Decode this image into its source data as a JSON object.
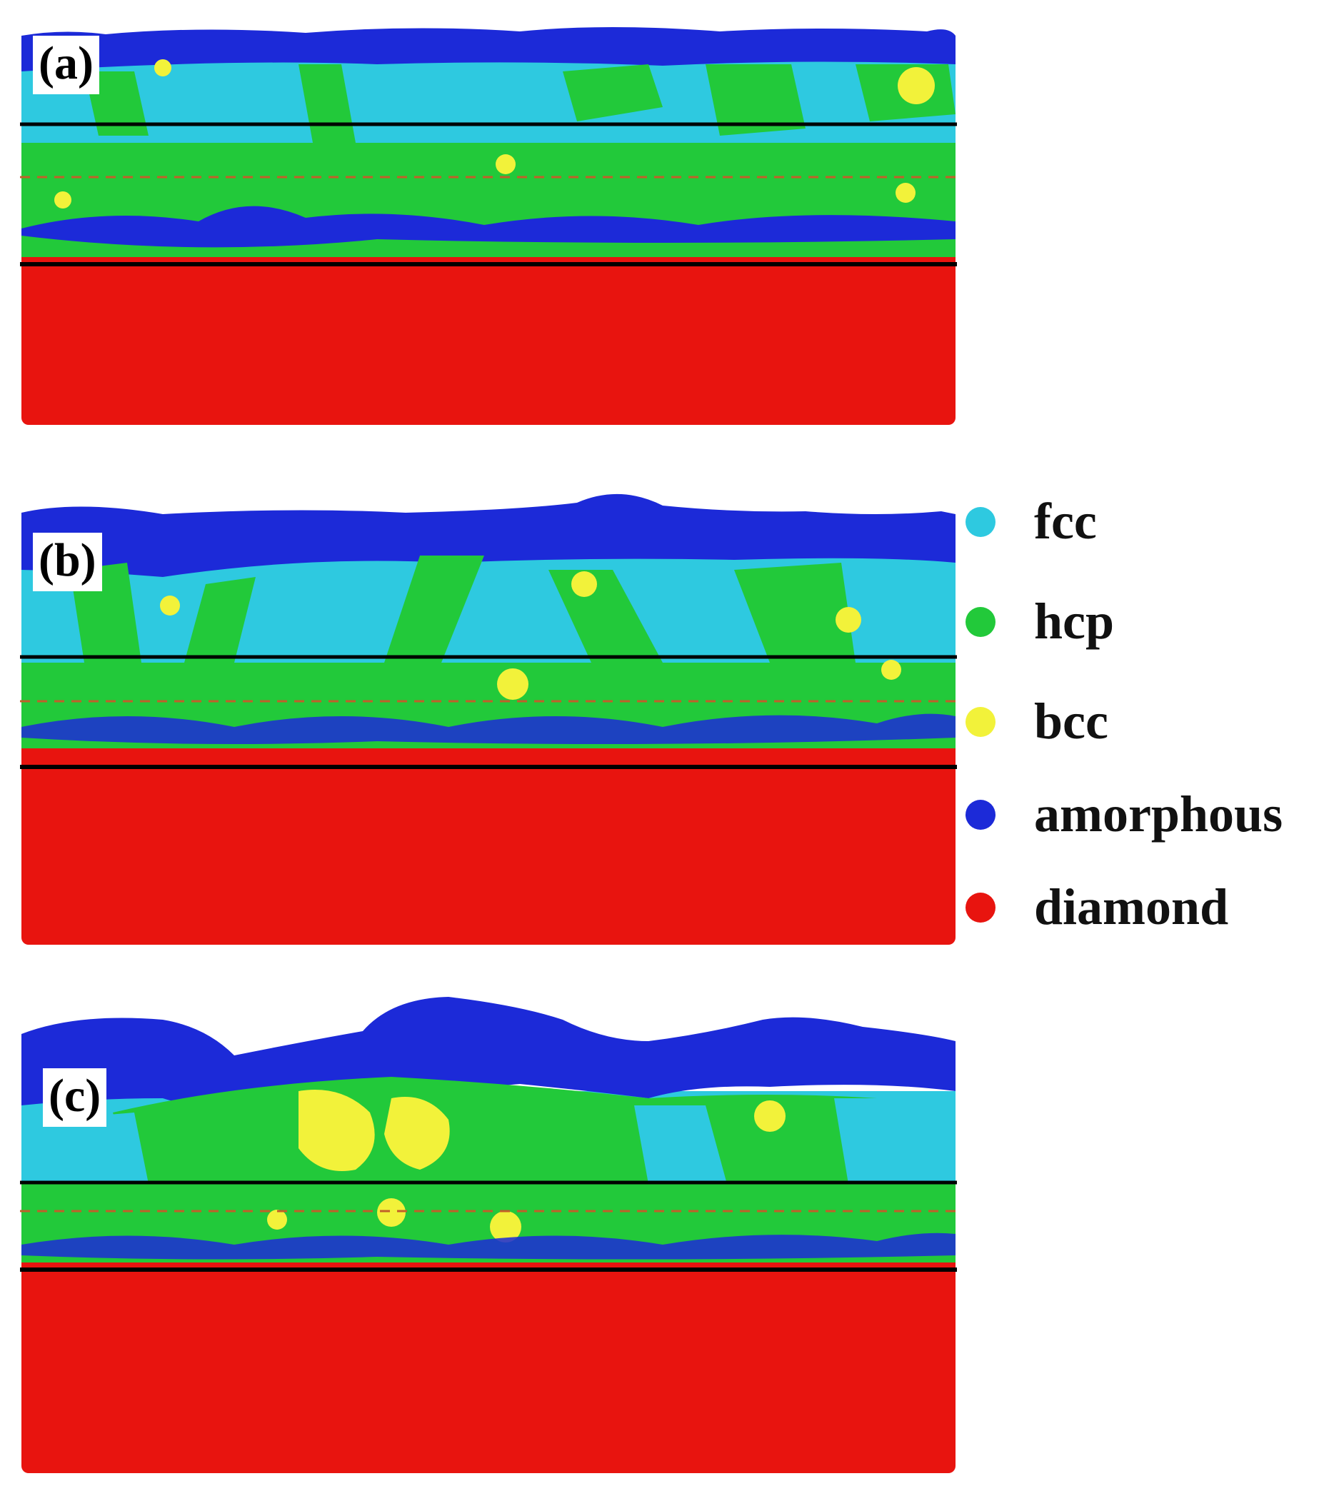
{
  "panels": [
    {
      "id": "a",
      "label": "(a)"
    },
    {
      "id": "b",
      "label": "(b)"
    },
    {
      "id": "c",
      "label": "(c)"
    }
  ],
  "legend": [
    {
      "key": "fcc",
      "label": "fcc",
      "color": "#2ec9e0"
    },
    {
      "key": "hcp",
      "label": "hcp",
      "color": "#22c93a"
    },
    {
      "key": "bcc",
      "label": "bcc",
      "color": "#f2f23a"
    },
    {
      "key": "amorphous",
      "label": "amorphous",
      "color": "#1c2ad8"
    },
    {
      "key": "diamond",
      "label": "diamond",
      "color": "#e8140f"
    }
  ],
  "colors": {
    "fcc": "#2ec9e0",
    "hcp": "#22c93a",
    "bcc": "#f2f23a",
    "amorphous": "#1c2ad8",
    "diamond": "#e8140f",
    "boundary_line": "#000000",
    "interface_dashed": "#c0602a"
  }
}
